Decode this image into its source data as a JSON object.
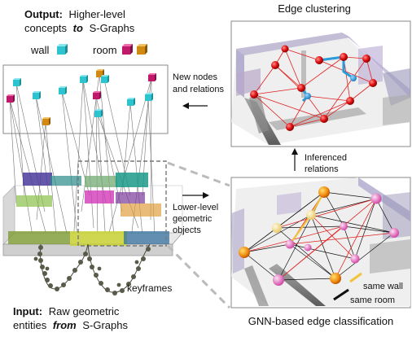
{
  "output": {
    "line1_bold": "Output:",
    "line1_rest": "Higher-level",
    "line2_pre": "concepts",
    "line2_italic": "to",
    "line2_post": "S-Graphs"
  },
  "legend": {
    "wall_label": "wall",
    "room_label": "room",
    "colors": {
      "wall": "#2ec4cf",
      "room": "#c0196b",
      "room_alt": "#d08a12"
    }
  },
  "input": {
    "line1_bold": "Input:",
    "line1_rest": "Raw geometric",
    "line2_pre": "entities",
    "line2_italic": "from",
    "line2_post": "S-Graphs"
  },
  "keyframes_label": "keyframes",
  "edge_clustering": {
    "title": "Edge clustering"
  },
  "new_nodes": {
    "line1": "New nodes",
    "line2": "and relations"
  },
  "inferenced": {
    "line1": "Inferenced",
    "line2": "relations"
  },
  "lower_level": {
    "line1": "Lower-level",
    "line2": "geometric",
    "line3": "objects"
  },
  "gnn": {
    "title": "GNN-based edge classification"
  },
  "edge_legend": {
    "same_wall": "same wall",
    "same_room": "same room",
    "colors": {
      "same_wall": "#f2c23a",
      "same_room": "#111111"
    }
  }
}
